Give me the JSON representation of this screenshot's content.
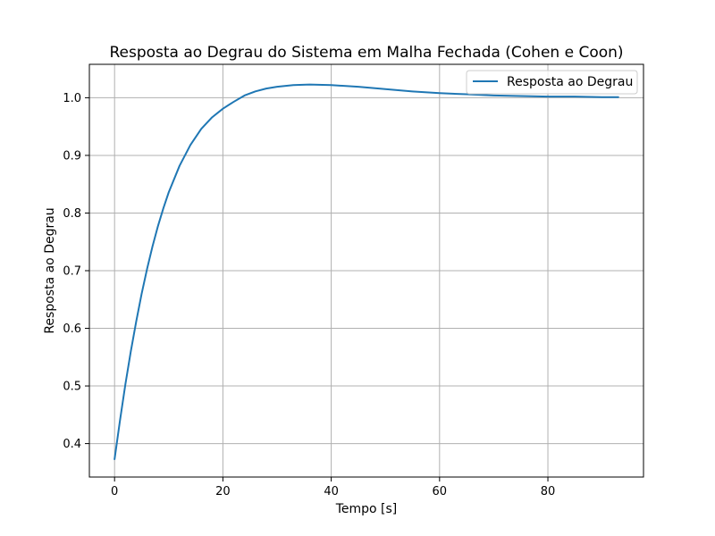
{
  "chart_data": {
    "type": "line",
    "title": "Resposta ao Degrau do Sistema em Malha Fechada (Cohen e Coon)",
    "xlabel": "Tempo [s]",
    "ylabel": "Resposta ao Degrau",
    "xlim": [
      -4.65,
      97.65
    ],
    "ylim": [
      0.342,
      1.058
    ],
    "xticks": [
      0,
      20,
      40,
      60,
      80
    ],
    "yticks": [
      0.4,
      0.5,
      0.6,
      0.7,
      0.8,
      0.9,
      1.0
    ],
    "xtick_labels": [
      "0",
      "20",
      "40",
      "60",
      "80"
    ],
    "ytick_labels": [
      "0.4",
      "0.5",
      "0.6",
      "0.7",
      "0.8",
      "0.9",
      "1.0"
    ],
    "grid": true,
    "legend": "top-right",
    "colors": {
      "series": "#1f77b4",
      "grid": "#b0b0b0",
      "axes": "#000000"
    },
    "series": [
      {
        "name": "Resposta ao Degrau",
        "x": [
          0,
          1,
          2,
          3,
          4,
          5,
          6,
          7,
          8,
          9,
          10,
          12,
          14,
          16,
          18,
          20,
          22,
          24,
          26,
          28,
          30,
          33,
          36,
          40,
          45,
          50,
          55,
          60,
          65,
          70,
          75,
          80,
          85,
          90,
          93
        ],
        "y": [
          0.373,
          0.44,
          0.503,
          0.56,
          0.612,
          0.66,
          0.703,
          0.742,
          0.777,
          0.808,
          0.836,
          0.882,
          0.918,
          0.946,
          0.966,
          0.981,
          0.993,
          1.004,
          1.011,
          1.016,
          1.019,
          1.022,
          1.023,
          1.022,
          1.019,
          1.015,
          1.011,
          1.008,
          1.006,
          1.004,
          1.003,
          1.002,
          1.002,
          1.001,
          1.001
        ]
      }
    ]
  }
}
